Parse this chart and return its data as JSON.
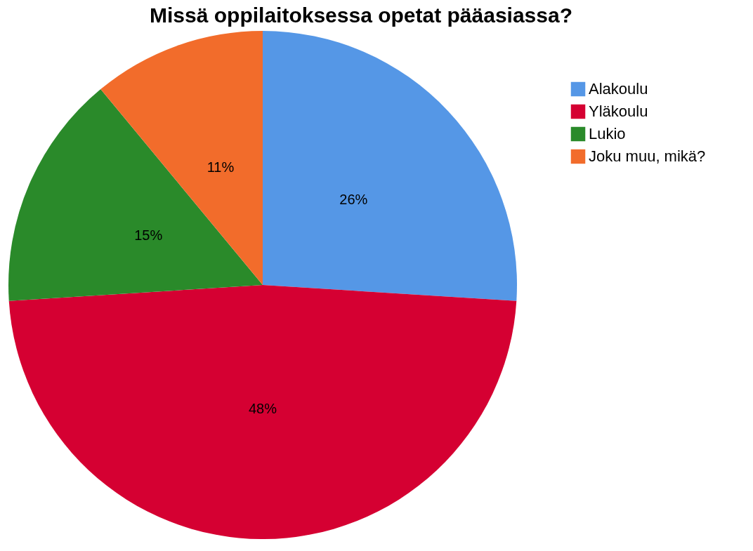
{
  "chart_data": {
    "type": "pie",
    "title": "Missä oppilaitoksessa opetat pääasiassa?",
    "categories": [
      "Alakoulu",
      "Yläkoulu",
      "Lukio",
      "Joku muu, mikä?"
    ],
    "values": [
      26,
      48,
      15,
      11
    ],
    "value_labels": [
      "26%",
      "48%",
      "15%",
      "11%"
    ],
    "colors": [
      "#5597e6",
      "#d50032",
      "#2a8a2a",
      "#f26c2b"
    ],
    "legend": "top right"
  }
}
